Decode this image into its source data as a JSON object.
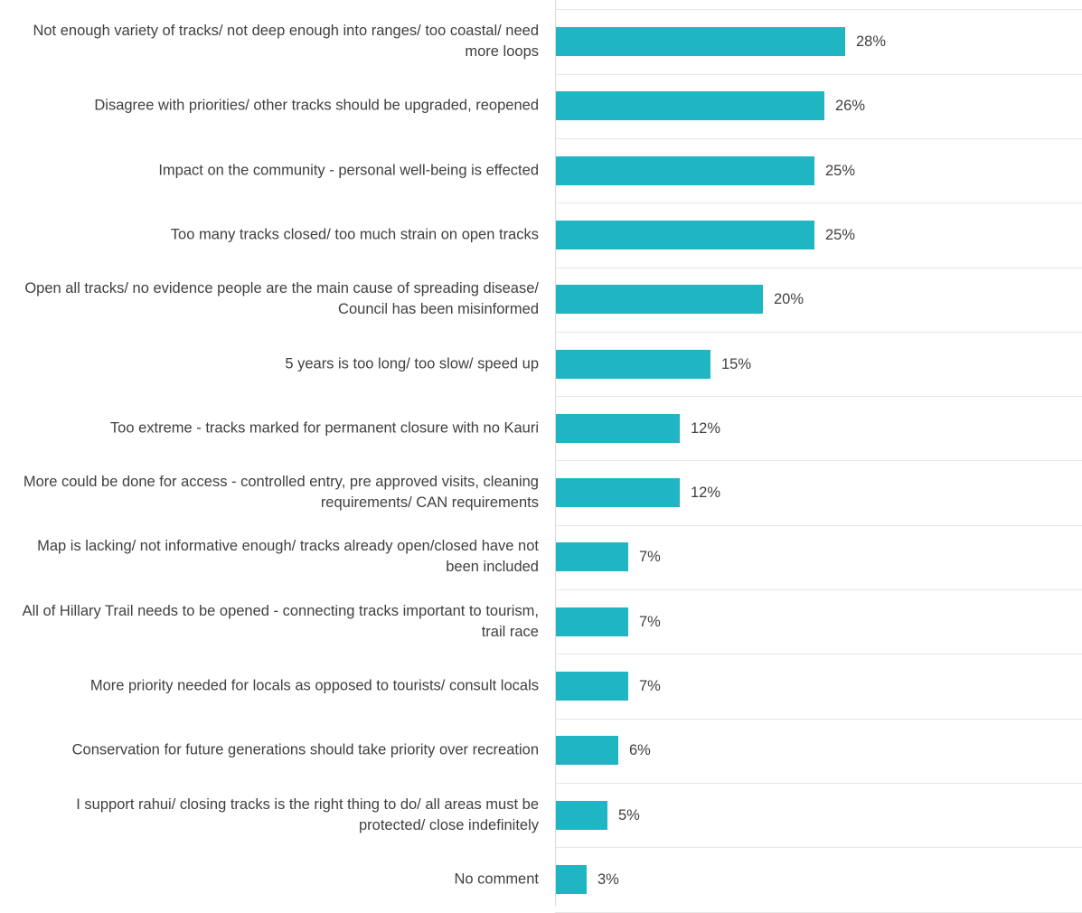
{
  "chart_data": {
    "type": "bar",
    "orientation": "horizontal",
    "categories": [
      "Not enough variety of tracks/ not deep enough into ranges/ too coastal/ need more loops",
      "Disagree with priorities/ other tracks should be upgraded, reopened",
      "Impact on the community - personal well-being is effected",
      "Too many tracks closed/  too much strain on open tracks",
      "Open all tracks/ no evidence people are the main cause of spreading disease/ Council has been misinformed",
      "5 years is too long/ too slow/ speed up",
      "Too extreme - tracks marked for permanent closure with no Kauri",
      "More could be done for access - controlled entry, pre approved visits, cleaning requirements/ CAN requirements",
      "Map is lacking/ not informative enough/ tracks already open/closed have not been included",
      "All of Hillary Trail needs to be opened - connecting tracks important to tourism, trail race",
      "More priority needed for locals as opposed to tourists/ consult locals",
      "Conservation for future generations should take priority over recreation",
      "I support rahui/ closing tracks is the right thing to do/ all areas must be protected/ close indefinitely",
      "No comment"
    ],
    "values": [
      28,
      26,
      25,
      25,
      20,
      15,
      12,
      12,
      7,
      7,
      7,
      6,
      5,
      3
    ],
    "value_labels": [
      "28%",
      "26%",
      "25%",
      "25%",
      "20%",
      "15%",
      "12%",
      "12%",
      "7%",
      "7%",
      "7%",
      "6%",
      "5%",
      "3%"
    ],
    "bar_color": "#1fb5c3",
    "xlim": [
      0,
      50
    ],
    "grid": true
  }
}
